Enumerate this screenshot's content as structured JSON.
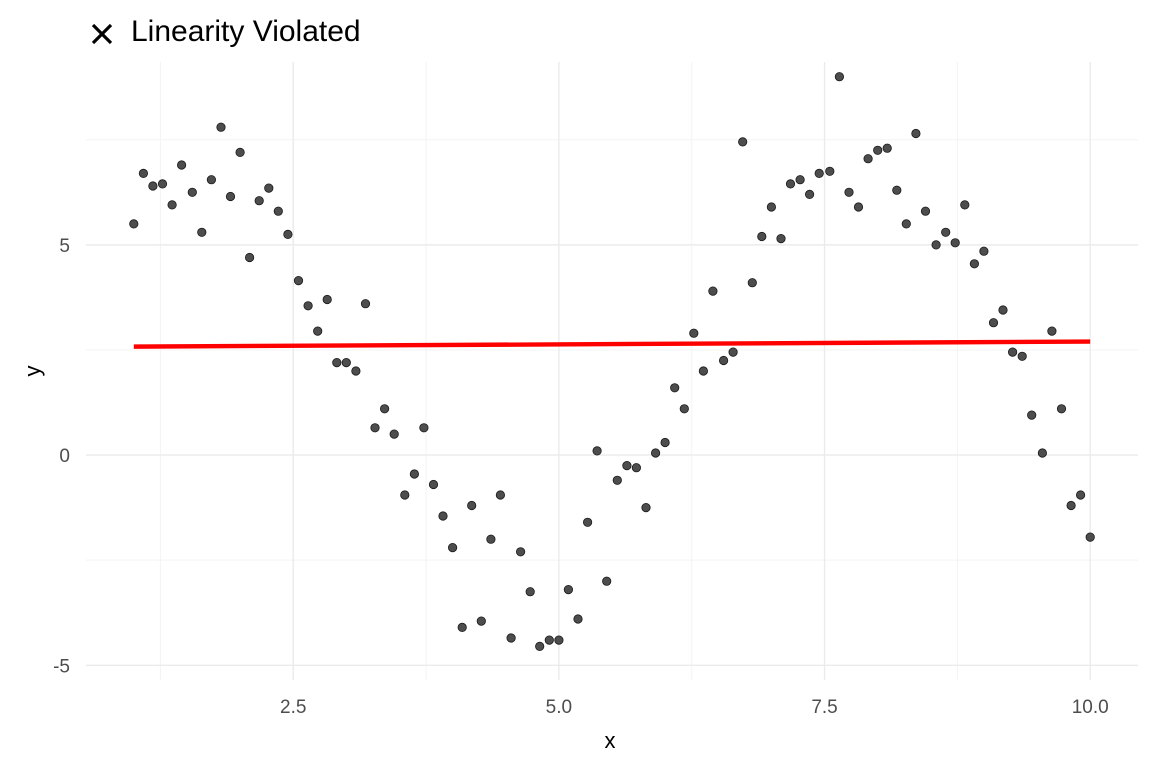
{
  "chart_data": {
    "type": "scatter",
    "title": "Linearity Violated",
    "title_icon": "close-x-icon",
    "xlabel": "x",
    "ylabel": "y",
    "xlim": [
      0.55,
      10.45
    ],
    "ylim": [
      -5.35,
      9.35
    ],
    "x_ticks": [
      2.5,
      5.0,
      7.5,
      10.0
    ],
    "x_tick_labels": [
      "2.5",
      "5.0",
      "7.5",
      "10.0"
    ],
    "y_ticks": [
      -5,
      0,
      5
    ],
    "y_tick_labels": [
      "-5",
      "0",
      "5"
    ],
    "x_minor_ticks": [
      1.25,
      3.75,
      6.25,
      8.75
    ],
    "y_minor_ticks": [
      -2.5,
      2.5,
      7.5
    ],
    "grid": true,
    "theme": "minimal",
    "point_color": "#4d4d4d",
    "point_stroke": "#1a1a1a",
    "fit_color": "#ff0000",
    "fit_line": {
      "x": [
        1.0,
        10.0
      ],
      "y": [
        2.58,
        2.7
      ]
    },
    "x": [
      1.0,
      1.09,
      1.18,
      1.27,
      1.36,
      1.45,
      1.55,
      1.64,
      1.73,
      1.82,
      1.91,
      2.0,
      2.09,
      2.18,
      2.27,
      2.36,
      2.45,
      2.55,
      2.64,
      2.73,
      2.82,
      2.91,
      3.0,
      3.09,
      3.18,
      3.27,
      3.36,
      3.45,
      3.55,
      3.64,
      3.73,
      3.82,
      3.91,
      4.0,
      4.09,
      4.18,
      4.27,
      4.36,
      4.45,
      4.55,
      4.64,
      4.73,
      4.82,
      4.91,
      5.0,
      5.09,
      5.18,
      5.27,
      5.36,
      5.45,
      5.55,
      5.64,
      5.73,
      5.82,
      5.91,
      6.0,
      6.09,
      6.18,
      6.27,
      6.36,
      6.45,
      6.55,
      6.64,
      6.73,
      6.82,
      6.91,
      7.0,
      7.09,
      7.18,
      7.27,
      7.36,
      7.45,
      7.55,
      7.64,
      7.73,
      7.82,
      7.91,
      8.0,
      8.09,
      8.18,
      8.27,
      8.36,
      8.45,
      8.55,
      8.64,
      8.73,
      8.82,
      8.91,
      9.0,
      9.09,
      9.18,
      9.27,
      9.36,
      9.45,
      9.55,
      9.64,
      9.73,
      9.82,
      9.91,
      10.0
    ],
    "y": [
      5.5,
      6.7,
      6.4,
      6.45,
      5.95,
      6.9,
      6.25,
      5.3,
      6.55,
      7.8,
      6.15,
      7.2,
      4.7,
      6.05,
      6.35,
      5.8,
      5.25,
      4.15,
      3.55,
      2.95,
      3.7,
      2.2,
      2.2,
      2.0,
      3.6,
      0.65,
      1.1,
      0.5,
      -0.95,
      -0.45,
      0.65,
      -0.7,
      -1.45,
      -2.2,
      -4.1,
      -1.2,
      -3.95,
      -2.0,
      -0.95,
      -4.35,
      -2.3,
      -3.25,
      -4.55,
      -4.4,
      -4.4,
      -3.2,
      -3.9,
      -1.6,
      0.1,
      -3.0,
      -0.6,
      -0.25,
      -0.3,
      -1.25,
      0.05,
      0.3,
      1.6,
      1.1,
      2.9,
      2.0,
      3.9,
      2.25,
      2.45,
      7.45,
      4.1,
      5.2,
      5.9,
      5.15,
      6.45,
      6.55,
      6.2,
      6.7,
      6.75,
      9.0,
      6.25,
      5.9,
      7.05,
      7.25,
      7.3,
      6.3,
      5.5,
      7.65,
      5.8,
      5.0,
      5.3,
      5.05,
      5.95,
      4.55,
      4.85,
      3.15,
      3.45,
      2.45,
      2.35,
      0.95,
      0.05,
      2.95,
      1.1,
      -1.2,
      -0.95,
      -1.95
    ]
  }
}
